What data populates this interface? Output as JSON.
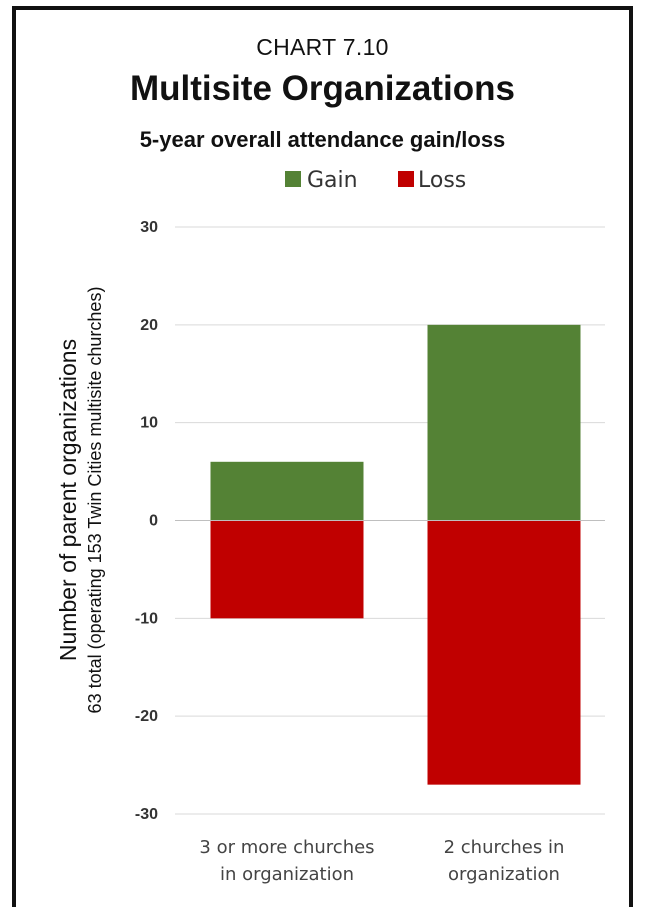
{
  "chart_data": {
    "type": "bar",
    "stacked": true,
    "kicker": "CHART 7.10",
    "title": "Multisite Organizations",
    "subtitle": "5-year overall attendance gain/loss",
    "ylabel": "Number of parent organizations",
    "ylabel_sub": "63 total (operating 153 Twin Cities multisite churches)",
    "categories": [
      [
        "3 or more churches",
        "in organization"
      ],
      [
        "2 churches in",
        "organization"
      ]
    ],
    "series": [
      {
        "name": "Gain",
        "values": [
          6,
          20
        ],
        "color": "#548235"
      },
      {
        "name": "Loss",
        "values": [
          -10,
          -27
        ],
        "color": "#c00000"
      }
    ],
    "ylim": [
      -30,
      30
    ],
    "yticks": [
      30,
      20,
      10,
      0,
      -10,
      -20,
      -30
    ],
    "grid": true,
    "legend_position": "top-center"
  }
}
